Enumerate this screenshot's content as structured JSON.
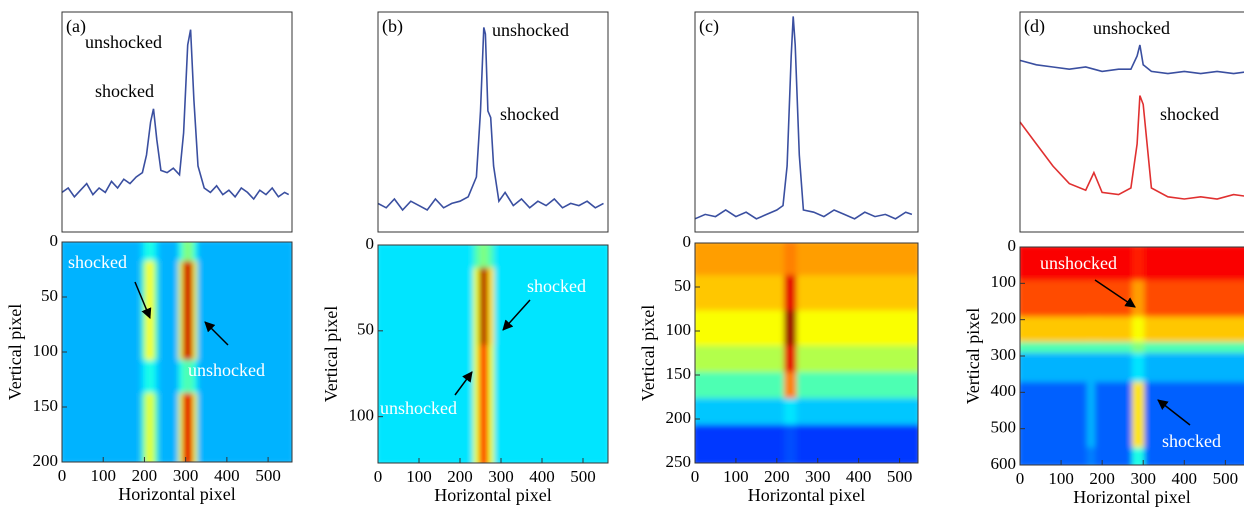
{
  "chart_data": [
    {
      "type": "line",
      "label": "(a)",
      "xlim": [
        0,
        558
      ],
      "ylim": [
        0,
        1
      ],
      "x": [
        0,
        15,
        30,
        45,
        60,
        75,
        90,
        105,
        120,
        135,
        150,
        165,
        180,
        195,
        205,
        215,
        222,
        230,
        240,
        255,
        270,
        285,
        295,
        305,
        312,
        320,
        330,
        345,
        360,
        375,
        390,
        405,
        420,
        435,
        450,
        465,
        480,
        495,
        510,
        525,
        540,
        550
      ],
      "series": [
        {
          "color": "#3a4fa0",
          "values": [
            0.18,
            0.2,
            0.16,
            0.19,
            0.22,
            0.17,
            0.2,
            0.18,
            0.23,
            0.2,
            0.24,
            0.22,
            0.25,
            0.27,
            0.35,
            0.5,
            0.56,
            0.42,
            0.28,
            0.27,
            0.29,
            0.26,
            0.45,
            0.85,
            0.92,
            0.6,
            0.3,
            0.2,
            0.18,
            0.21,
            0.17,
            0.19,
            0.16,
            0.2,
            0.18,
            0.15,
            0.19,
            0.17,
            0.2,
            0.16,
            0.18,
            0.17
          ]
        }
      ],
      "annotations": [
        {
          "text": "unshocked",
          "color": "#000000"
        },
        {
          "text": "shocked",
          "color": "#000000"
        }
      ]
    },
    {
      "type": "heatmap",
      "xlabel": "Horizontal pixel",
      "ylabel": "Vertical pixel",
      "colormap": "jet",
      "y_inverted": true,
      "xlim": [
        0,
        558
      ],
      "ylim": [
        0,
        200
      ],
      "xticks": [
        0,
        100,
        200,
        300,
        400,
        500
      ],
      "yticks": [
        0,
        50,
        100,
        150,
        200
      ],
      "x_edges": [
        0,
        200,
        210,
        230,
        240,
        290,
        300,
        325,
        335,
        558
      ],
      "y_edges": [
        0,
        20,
        110,
        140,
        200
      ],
      "z": [
        [
          0.3,
          0.35,
          0.4,
          0.35,
          0.3,
          0.4,
          0.5,
          0.4,
          0.3
        ],
        [
          0.3,
          0.45,
          0.62,
          0.45,
          0.3,
          0.6,
          0.92,
          0.6,
          0.3
        ],
        [
          0.3,
          0.35,
          0.4,
          0.35,
          0.3,
          0.4,
          0.45,
          0.4,
          0.3
        ],
        [
          0.3,
          0.45,
          0.6,
          0.45,
          0.3,
          0.6,
          0.9,
          0.6,
          0.3
        ]
      ],
      "annotations": [
        {
          "text": "shocked",
          "color": "#ffffff"
        },
        {
          "text": "unshocked",
          "color": "#ffffff"
        }
      ]
    },
    {
      "type": "line",
      "label": "(b)",
      "xlim": [
        0,
        561
      ],
      "ylim": [
        0,
        1
      ],
      "x": [
        0,
        20,
        40,
        60,
        80,
        100,
        120,
        140,
        160,
        180,
        200,
        220,
        240,
        250,
        258,
        262,
        268,
        275,
        282,
        295,
        310,
        330,
        350,
        370,
        390,
        410,
        430,
        450,
        470,
        490,
        510,
        530,
        550
      ],
      "series": [
        {
          "color": "#3a4fa0",
          "values": [
            0.13,
            0.11,
            0.15,
            0.1,
            0.14,
            0.12,
            0.1,
            0.15,
            0.11,
            0.13,
            0.14,
            0.16,
            0.25,
            0.55,
            0.93,
            0.9,
            0.55,
            0.52,
            0.3,
            0.14,
            0.18,
            0.12,
            0.15,
            0.11,
            0.14,
            0.12,
            0.15,
            0.11,
            0.13,
            0.12,
            0.14,
            0.11,
            0.13
          ]
        }
      ],
      "annotations": [
        {
          "text": "unshocked",
          "color": "#000000"
        },
        {
          "text": "shocked",
          "color": "#000000"
        }
      ]
    },
    {
      "type": "heatmap",
      "xlabel": "Horizontal pixel",
      "ylabel": "Vertical pixel",
      "colormap": "jet",
      "y_inverted": true,
      "xlim": [
        0,
        561
      ],
      "ylim": [
        0,
        127
      ],
      "xticks": [
        0,
        100,
        200,
        300,
        400,
        500
      ],
      "yticks": [
        0,
        50,
        100
      ],
      "x_edges": [
        0,
        240,
        255,
        275,
        290,
        561
      ],
      "y_edges": [
        0,
        15,
        60,
        127
      ],
      "z": [
        [
          0.35,
          0.45,
          0.5,
          0.45,
          0.35
        ],
        [
          0.35,
          0.6,
          0.95,
          0.65,
          0.35
        ],
        [
          0.35,
          0.6,
          0.85,
          0.6,
          0.35
        ]
      ],
      "annotations": [
        {
          "text": "shocked",
          "color": "#ffffff"
        },
        {
          "text": "unshocked",
          "color": "#ffffff"
        }
      ]
    },
    {
      "type": "line",
      "label": "(c)",
      "xlim": [
        0,
        545
      ],
      "ylim": [
        0,
        1
      ],
      "x": [
        0,
        25,
        50,
        75,
        100,
        125,
        150,
        175,
        200,
        215,
        225,
        235,
        240,
        245,
        255,
        265,
        290,
        315,
        340,
        365,
        390,
        415,
        440,
        465,
        490,
        515,
        530
      ],
      "series": [
        {
          "color": "#3a4fa0",
          "values": [
            0.06,
            0.08,
            0.07,
            0.1,
            0.07,
            0.09,
            0.06,
            0.08,
            0.1,
            0.12,
            0.3,
            0.8,
            0.98,
            0.85,
            0.35,
            0.1,
            0.09,
            0.07,
            0.1,
            0.08,
            0.06,
            0.09,
            0.07,
            0.08,
            0.06,
            0.09,
            0.08
          ]
        }
      ],
      "annotations": []
    },
    {
      "type": "heatmap",
      "xlabel": "Horizontal pixel",
      "ylabel": "Vertical pixel",
      "colormap": "jet",
      "y_inverted": true,
      "xlim": [
        0,
        545
      ],
      "ylim": [
        0,
        250
      ],
      "xticks": [
        0,
        100,
        200,
        300,
        400,
        500
      ],
      "yticks": [
        0,
        50,
        100,
        150,
        200,
        250
      ],
      "x_edges": [
        0,
        225,
        255,
        545
      ],
      "y_edges": [
        0,
        40,
        80,
        120,
        150,
        180,
        210,
        250
      ],
      "z": [
        [
          0.72,
          0.75,
          0.72
        ],
        [
          0.68,
          0.9,
          0.68
        ],
        [
          0.62,
          0.97,
          0.62
        ],
        [
          0.55,
          0.9,
          0.55
        ],
        [
          0.45,
          0.75,
          0.45
        ],
        [
          0.32,
          0.35,
          0.32
        ],
        [
          0.18,
          0.2,
          0.18
        ]
      ],
      "annotations": []
    },
    {
      "type": "line",
      "label": "(d)",
      "xlim": [
        0,
        560
      ],
      "ylim": [
        0,
        1
      ],
      "x": [
        0,
        40,
        80,
        120,
        160,
        180,
        200,
        240,
        270,
        285,
        292,
        300,
        320,
        360,
        400,
        440,
        480,
        520,
        560
      ],
      "series": [
        {
          "color": "#3a4fa0",
          "values": [
            0.78,
            0.76,
            0.75,
            0.74,
            0.75,
            0.74,
            0.73,
            0.74,
            0.74,
            0.8,
            0.85,
            0.76,
            0.73,
            0.72,
            0.73,
            0.72,
            0.73,
            0.72,
            0.73
          ]
        },
        {
          "color": "#e03030",
          "values": [
            0.5,
            0.4,
            0.3,
            0.22,
            0.19,
            0.27,
            0.18,
            0.17,
            0.2,
            0.4,
            0.62,
            0.58,
            0.2,
            0.16,
            0.15,
            0.16,
            0.15,
            0.17,
            0.16
          ]
        }
      ],
      "annotations": [
        {
          "text": "unshocked",
          "color": "#000000"
        },
        {
          "text": "shocked",
          "color": "#000000"
        }
      ]
    },
    {
      "type": "heatmap",
      "xlabel": "Horizontal pixel",
      "ylabel": "Vertical pixel",
      "colormap": "jet",
      "y_inverted": true,
      "xlim": [
        0,
        560
      ],
      "ylim": [
        0,
        600
      ],
      "xticks": [
        0,
        100,
        200,
        300,
        400,
        500
      ],
      "yticks": [
        0,
        100,
        200,
        300,
        400,
        500,
        600
      ],
      "x_edges": [
        0,
        170,
        190,
        280,
        310,
        560
      ],
      "y_edges": [
        0,
        100,
        200,
        270,
        300,
        380,
        560,
        600
      ],
      "z": [
        [
          0.88,
          0.88,
          0.88,
          0.85,
          0.88
        ],
        [
          0.8,
          0.8,
          0.8,
          0.72,
          0.8
        ],
        [
          0.68,
          0.68,
          0.68,
          0.62,
          0.68
        ],
        [
          0.45,
          0.45,
          0.45,
          0.5,
          0.45
        ],
        [
          0.3,
          0.3,
          0.3,
          0.35,
          0.3
        ],
        [
          0.22,
          0.3,
          0.22,
          0.65,
          0.22
        ],
        [
          0.22,
          0.25,
          0.22,
          0.4,
          0.22
        ]
      ],
      "annotations": [
        {
          "text": "unshocked",
          "color": "#ffffff"
        },
        {
          "text": "shocked",
          "color": "#ffffff"
        }
      ]
    }
  ]
}
